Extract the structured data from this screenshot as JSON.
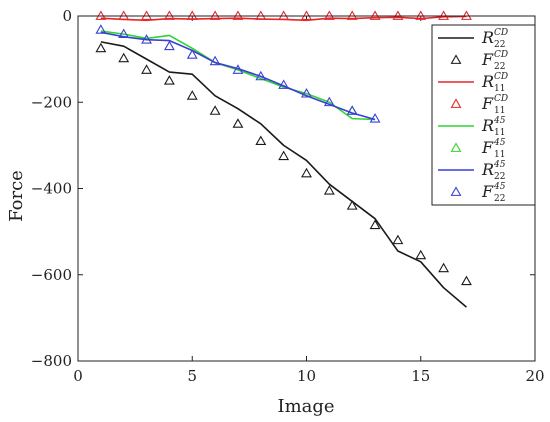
{
  "chart_data": {
    "type": "line",
    "title": "",
    "xlabel": "Image",
    "ylabel": "Force",
    "xlim": [
      0,
      20
    ],
    "ylim": [
      -800,
      0
    ],
    "x_ticks": [
      0,
      5,
      10,
      15,
      20
    ],
    "y_ticks": [
      0,
      -200,
      -400,
      -600,
      -800
    ],
    "x_tick_labels": [
      "0",
      "5",
      "10",
      "15",
      "20"
    ],
    "y_tick_labels": [
      "0",
      "−200",
      "−400",
      "−600",
      "−800"
    ],
    "grid": false,
    "legend_position": "top-right",
    "series": [
      {
        "name": "R22CD",
        "label": {
          "main": "R",
          "sub": "22",
          "sup": "CD"
        },
        "style": "line",
        "color": "#1a1a1a",
        "x": [
          1,
          2,
          3,
          4,
          5,
          6,
          7,
          8,
          9,
          10,
          11,
          12,
          13,
          14,
          15,
          16,
          17
        ],
        "y": [
          -60,
          -70,
          -100,
          -130,
          -135,
          -185,
          -215,
          -250,
          -300,
          -335,
          -390,
          -430,
          -470,
          -545,
          -570,
          -630,
          -675
        ]
      },
      {
        "name": "F22CD",
        "label": {
          "main": "F",
          "sub": "22",
          "sup": "CD"
        },
        "style": "marker",
        "marker": "triangle",
        "color": "#1a1a1a",
        "x": [
          1,
          2,
          3,
          4,
          5,
          6,
          7,
          8,
          9,
          10,
          11,
          12,
          13,
          14,
          15,
          16,
          17
        ],
        "y": [
          -75,
          -98,
          -125,
          -150,
          -185,
          -220,
          -250,
          -290,
          -325,
          -365,
          -405,
          -440,
          -485,
          -520,
          -555,
          -585,
          -615
        ]
      },
      {
        "name": "R11CD",
        "label": {
          "main": "R",
          "sub": "11",
          "sup": "CD"
        },
        "style": "line",
        "color": "#e8262a",
        "x": [
          1,
          2,
          3,
          4,
          5,
          6,
          7,
          8,
          9,
          10,
          11,
          12,
          13,
          14,
          15,
          16,
          17
        ],
        "y": [
          -5,
          -8,
          -10,
          -6,
          -7,
          -6,
          -5,
          -7,
          -8,
          -10,
          -5,
          -6,
          -4,
          -3,
          -6,
          -2,
          -1
        ]
      },
      {
        "name": "F11CD",
        "label": {
          "main": "F",
          "sub": "11",
          "sup": "CD"
        },
        "style": "marker",
        "marker": "triangle",
        "color": "#e8262a",
        "x": [
          1,
          2,
          3,
          4,
          5,
          6,
          7,
          8,
          9,
          10,
          11,
          12,
          13,
          14,
          15,
          16,
          17
        ],
        "y": [
          0,
          0,
          0,
          0,
          0,
          0,
          0,
          0,
          0,
          0,
          0,
          0,
          0,
          0,
          0,
          0,
          0
        ]
      },
      {
        "name": "R1145",
        "label": {
          "main": "R",
          "sub": "11",
          "sup": "45"
        },
        "style": "line",
        "color": "#2fd42f",
        "x": [
          1,
          2,
          3,
          4,
          5,
          6,
          7,
          8,
          9,
          10,
          11,
          12,
          13
        ],
        "y": [
          -35,
          -42,
          -52,
          -45,
          -75,
          -108,
          -125,
          -145,
          -165,
          -180,
          -200,
          -238,
          -240
        ]
      },
      {
        "name": "F1145",
        "label": {
          "main": "F",
          "sub": "11",
          "sup": "45"
        },
        "style": "marker",
        "marker": "triangle",
        "color": "#2fd42f",
        "x": [
          12
        ],
        "y": [
          -220
        ]
      },
      {
        "name": "R2245",
        "label": {
          "main": "R",
          "sub": "22",
          "sup": "45"
        },
        "style": "line",
        "color": "#3a3fd6",
        "x": [
          1,
          2,
          3,
          4,
          5,
          6,
          7,
          8,
          9,
          10,
          11,
          12,
          13
        ],
        "y": [
          -38,
          -48,
          -55,
          -57,
          -80,
          -108,
          -122,
          -140,
          -162,
          -185,
          -205,
          -225,
          -240
        ]
      },
      {
        "name": "F2245",
        "label": {
          "main": "F",
          "sub": "22",
          "sup": "45"
        },
        "style": "marker",
        "marker": "triangle",
        "color": "#3a3fd6",
        "x": [
          1,
          2,
          3,
          4,
          5,
          6,
          7,
          8,
          9,
          10,
          11,
          12,
          13
        ],
        "y": [
          -32,
          -42,
          -55,
          -70,
          -90,
          -105,
          -125,
          -140,
          -160,
          -180,
          -200,
          -220,
          -238
        ]
      }
    ]
  }
}
